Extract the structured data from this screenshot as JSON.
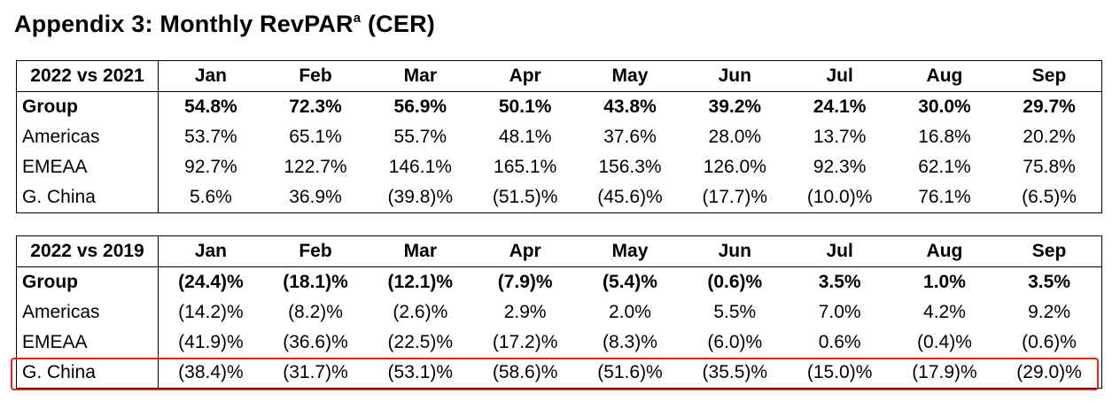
{
  "title": {
    "text": "Appendix 3: Monthly RevPAR",
    "superscript": "a",
    "suffix": "(CER)"
  },
  "tables": [
    {
      "header": [
        "2022 vs 2021",
        "Jan",
        "Feb",
        "Mar",
        "Apr",
        "May",
        "Jun",
        "Jul",
        "Aug",
        "Sep"
      ],
      "rows": [
        {
          "label": "Group",
          "values": [
            "54.8%",
            "72.3%",
            "56.9%",
            "50.1%",
            "43.8%",
            "39.2%",
            "24.1%",
            "30.0%",
            "29.7%"
          ]
        },
        {
          "label": "Americas",
          "values": [
            "53.7%",
            "65.1%",
            "55.7%",
            "48.1%",
            "37.6%",
            "28.0%",
            "13.7%",
            "16.8%",
            "20.2%"
          ]
        },
        {
          "label": "EMEAA",
          "values": [
            "92.7%",
            "122.7%",
            "146.1%",
            "165.1%",
            "156.3%",
            "126.0%",
            "92.3%",
            "62.1%",
            "75.8%"
          ]
        },
        {
          "label": "G. China",
          "values": [
            "5.6%",
            "36.9%",
            "(39.8)%",
            "(51.5)%",
            "(45.6)%",
            "(17.7)%",
            "(10.0)%",
            "76.1%",
            "(6.5)%"
          ]
        }
      ]
    },
    {
      "header": [
        "2022 vs 2019",
        "Jan",
        "Feb",
        "Mar",
        "Apr",
        "May",
        "Jun",
        "Jul",
        "Aug",
        "Sep"
      ],
      "rows": [
        {
          "label": "Group",
          "values": [
            "(24.4)%",
            "(18.1)%",
            "(12.1)%",
            "(7.9)%",
            "(5.4)%",
            "(0.6)%",
            "3.5%",
            "1.0%",
            "3.5%"
          ]
        },
        {
          "label": "Americas",
          "values": [
            "(14.2)%",
            "(8.2)%",
            "(2.6)%",
            "2.9%",
            "2.0%",
            "5.5%",
            "7.0%",
            "4.2%",
            "9.2%"
          ]
        },
        {
          "label": "EMEAA",
          "values": [
            "(41.9)%",
            "(36.6)%",
            "(22.5)%",
            "(17.2)%",
            "(8.3)%",
            "(6.0)%",
            "0.6%",
            "(0.4)%",
            "(0.6)%"
          ]
        },
        {
          "label": "G. China",
          "values": [
            "(38.4)%",
            "(31.7)%",
            "(53.1)%",
            "(58.6)%",
            "(51.6)%",
            "(35.5)%",
            "(15.0)%",
            "(17.9)%",
            "(29.0)%"
          ]
        }
      ]
    }
  ],
  "highlight_color": "#e8221b"
}
